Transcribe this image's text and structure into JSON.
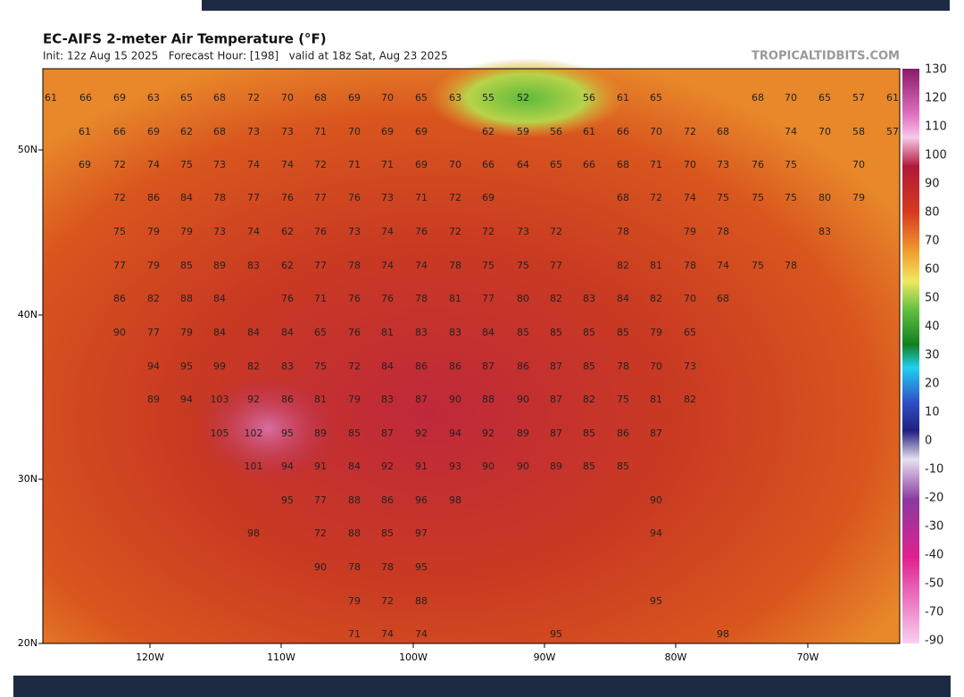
{
  "map": {
    "title": "EC-AIFS 2-meter Air Temperature (°F)",
    "subtitle": "Init: 12z Aug 15 2025   Forecast Hour: [198]   valid at 18z Sat, Aug 23 2025",
    "watermark": "TROPICALTIDBITS.COM",
    "lat_labels": [
      "50N",
      "40N",
      "30N",
      "20N"
    ],
    "lon_labels": [
      "120W",
      "110W",
      "100W",
      "90W",
      "80W",
      "70W"
    ],
    "colorbar": [
      130,
      120,
      110,
      100,
      90,
      80,
      70,
      60,
      50,
      40,
      30,
      20,
      10,
      0,
      -10,
      -20,
      -30,
      -40,
      -50,
      -70,
      -90
    ],
    "temperatures": [
      [
        61,
        66,
        69,
        63,
        65,
        68,
        72,
        70,
        68,
        69,
        70,
        65,
        63,
        55,
        52,
        56,
        61,
        65,
        68,
        70,
        65,
        57,
        61
      ],
      [
        61,
        66,
        69,
        62,
        68,
        73,
        73,
        71,
        70,
        69,
        69,
        62,
        59,
        56,
        61,
        66,
        70,
        72,
        68,
        74,
        70,
        58,
        57
      ],
      [
        69,
        72,
        74,
        75,
        73,
        74,
        74,
        72,
        71,
        71,
        69,
        70,
        66,
        64,
        65,
        66,
        68,
        71,
        70,
        73,
        76,
        75,
        70
      ],
      [
        72,
        86,
        84,
        78,
        77,
        76,
        77,
        76,
        73,
        71,
        72,
        69,
        68,
        72,
        74,
        75,
        75,
        75,
        80,
        79
      ],
      [
        75,
        79,
        79,
        73,
        74,
        62,
        76,
        73,
        74,
        76,
        72,
        72,
        73,
        72,
        78,
        79,
        78,
        83
      ],
      [
        77,
        79,
        85,
        89,
        83,
        62,
        77,
        78,
        74,
        74,
        78,
        75,
        75,
        77,
        82,
        81,
        78,
        74,
        75,
        78
      ],
      [
        86,
        82,
        88,
        84,
        76,
        71,
        76,
        76,
        78,
        81,
        77,
        80,
        82,
        83,
        84,
        82,
        70,
        68
      ],
      [
        90,
        77,
        79,
        84,
        84,
        84,
        65,
        76,
        81,
        83,
        83,
        84,
        85,
        85,
        85,
        85,
        79,
        65
      ],
      [
        94,
        95,
        99,
        82,
        83,
        75,
        72,
        84,
        86,
        86,
        87,
        86,
        87,
        85,
        78,
        70,
        73
      ],
      [
        89,
        94,
        103,
        92,
        86,
        81,
        79,
        83,
        87,
        90,
        88,
        90,
        87,
        82,
        75,
        81,
        82
      ],
      [
        105,
        102,
        95,
        89,
        85,
        87,
        92,
        94,
        92,
        89,
        87,
        85,
        86,
        87
      ],
      [
        101,
        94,
        91,
        84,
        92,
        91,
        93,
        90,
        90,
        89,
        85,
        85
      ],
      [
        95,
        77,
        88,
        86,
        96,
        98,
        90
      ],
      [
        98,
        72,
        88,
        85,
        97,
        94
      ],
      [
        90,
        78,
        78,
        95
      ],
      [
        79,
        72,
        88,
        95
      ],
      [
        71,
        74,
        74,
        95,
        98
      ]
    ]
  }
}
